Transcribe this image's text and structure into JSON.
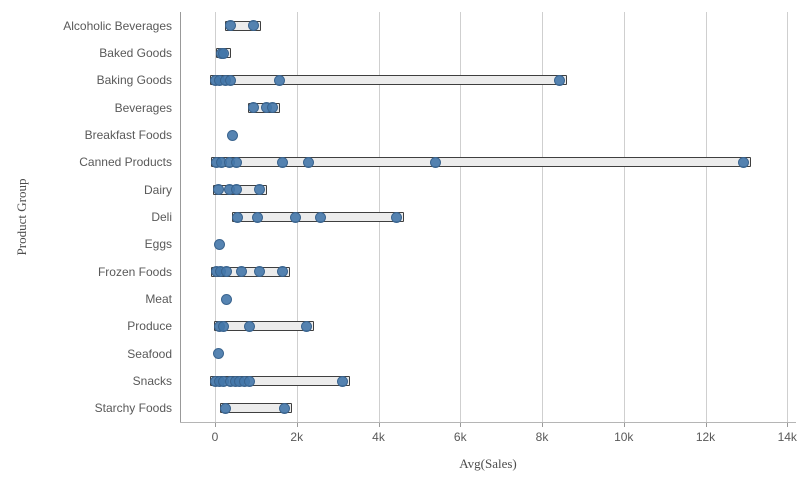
{
  "chart_data": {
    "type": "scatter",
    "subtype": "distribution-strip-plot",
    "title": "",
    "xlabel": "Avg(Sales)",
    "ylabel": "Product Group",
    "xlim": [
      0,
      14000
    ],
    "grid": "vertical",
    "x_ticks": [
      {
        "label": "0",
        "value": 0
      },
      {
        "label": "2k",
        "value": 2000
      },
      {
        "label": "4k",
        "value": 4000
      },
      {
        "label": "6k",
        "value": 6000
      },
      {
        "label": "8k",
        "value": 8000
      },
      {
        "label": "10k",
        "value": 10000
      },
      {
        "label": "12k",
        "value": 12000
      },
      {
        "label": "14k",
        "value": 14000
      }
    ],
    "categories": [
      {
        "label": "Alcoholic Beverages",
        "points": [
          390,
          930
        ]
      },
      {
        "label": "Baked Goods",
        "points": [
          150,
          210
        ]
      },
      {
        "label": "Baking Goods",
        "points": [
          10,
          120,
          245,
          370,
          1590,
          8440
        ]
      },
      {
        "label": "Beverages",
        "points": [
          930,
          1270,
          1400
        ]
      },
      {
        "label": "Breakfast Foods",
        "points": [
          440
        ]
      },
      {
        "label": "Canned Products",
        "points": [
          25,
          170,
          345,
          530,
          1640,
          2280,
          5390,
          12930
        ]
      },
      {
        "label": "Dairy",
        "points": [
          75,
          345,
          515,
          1080
        ]
      },
      {
        "label": "Deli",
        "points": [
          550,
          1030,
          1960,
          2570,
          4430
        ]
      },
      {
        "label": "Eggs",
        "points": [
          120
        ]
      },
      {
        "label": "Frozen Foods",
        "points": [
          25,
          130,
          270,
          660,
          1100,
          1650
        ]
      },
      {
        "label": "Meat",
        "points": [
          290
        ]
      },
      {
        "label": "Produce",
        "points": [
          120,
          220,
          840,
          2230
        ]
      },
      {
        "label": "Seafood",
        "points": [
          90
        ]
      },
      {
        "label": "Snacks",
        "points": [
          10,
          100,
          220,
          390,
          505,
          595,
          715,
          840,
          3110
        ]
      },
      {
        "label": "Starchy Foods",
        "points": [
          245,
          1690
        ]
      }
    ],
    "colors": {
      "point_fill": "rgba(68,119,170,0.9)",
      "point_border": "#3a648f",
      "bar_fill": "#ececec",
      "bar_border": "#3f3f3f",
      "gridline": "#cfcfcf",
      "axis_line": "#999999",
      "text": "#595959"
    }
  }
}
